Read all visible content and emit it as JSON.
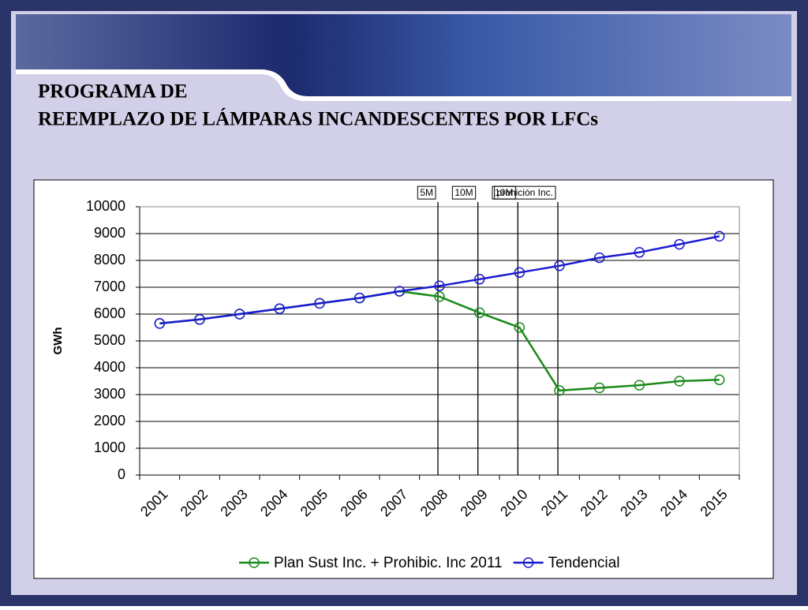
{
  "title_lines": [
    "PROGRAMA DE",
    "REEMPLAZO DE LÁMPARAS INCANDESCENTES POR LFCs"
  ],
  "chart_data": {
    "type": "line",
    "ylabel": "GWh",
    "categories": [
      "2001",
      "2002",
      "2003",
      "2004",
      "2005",
      "2006",
      "2007",
      "2008",
      "2009",
      "2010",
      "2011",
      "2012",
      "2013",
      "2014",
      "2015"
    ],
    "series": [
      {
        "name": "Plan Sust Inc. + Prohibic. Inc 2011",
        "color": "#1a8a1a",
        "values": [
          5650,
          5800,
          6000,
          6200,
          6400,
          6600,
          6850,
          6650,
          6050,
          5500,
          3150,
          3250,
          3350,
          3500,
          3550
        ]
      },
      {
        "name": "Tendencial",
        "color": "#1a1ad0",
        "values": [
          5650,
          5800,
          6000,
          6200,
          6400,
          6600,
          6850,
          7050,
          7300,
          7550,
          7800,
          8100,
          8300,
          8600,
          8900
        ]
      }
    ],
    "annotations": [
      {
        "label": "5M",
        "category": "2008"
      },
      {
        "label": "10M",
        "category": "2009"
      },
      {
        "label": "10M",
        "category": "2010"
      },
      {
        "label": "prohición Inc.",
        "category": "2011"
      }
    ],
    "ylim": [
      0,
      10000
    ],
    "yticks": [
      0,
      1000,
      2000,
      3000,
      4000,
      5000,
      6000,
      7000,
      8000,
      9000,
      10000
    ],
    "grid": true,
    "legend": "bottom"
  }
}
